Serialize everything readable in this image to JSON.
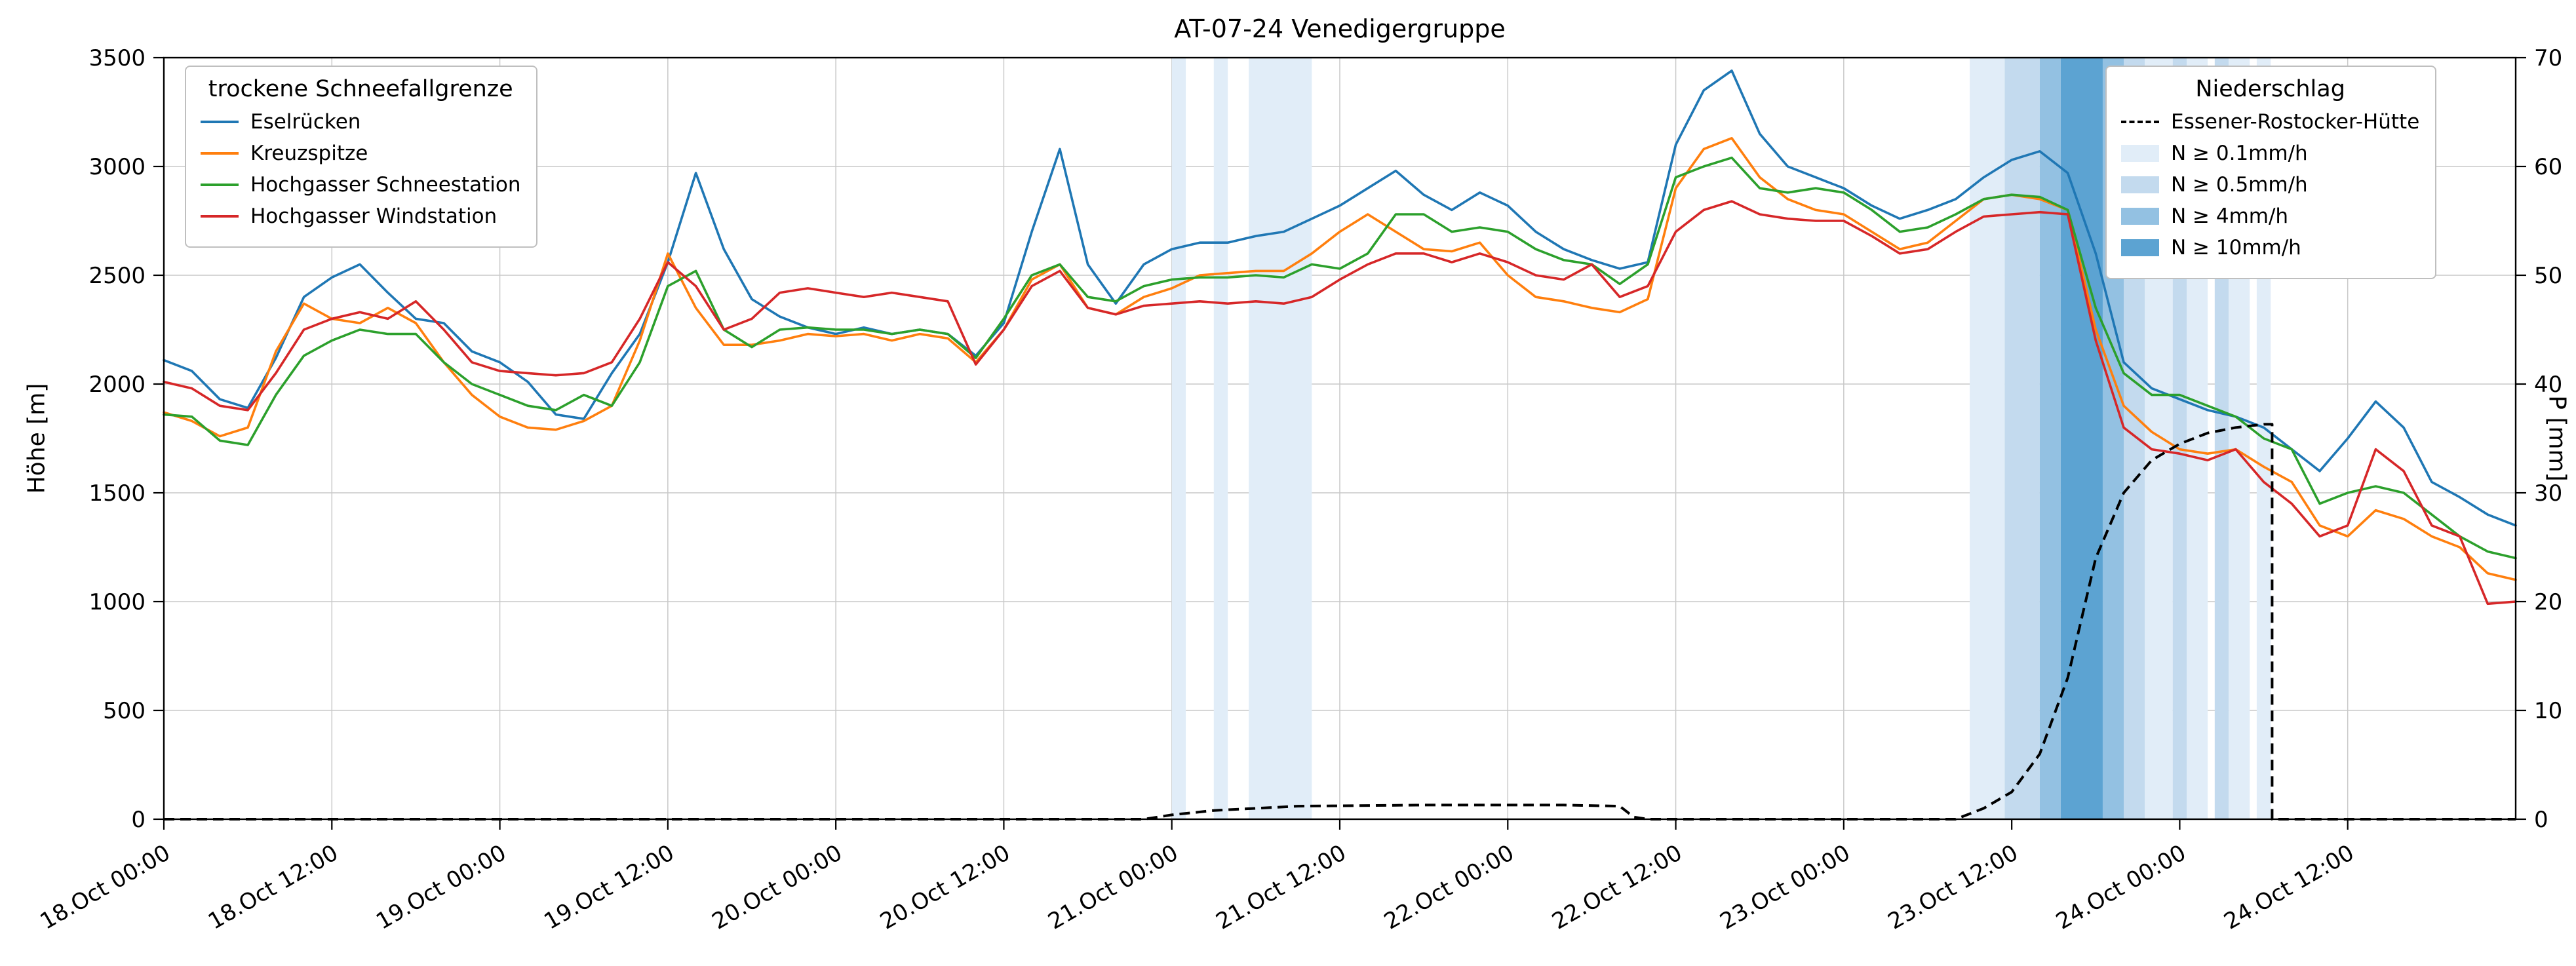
{
  "chart_data": {
    "type": "line",
    "title": "AT-07-24 Venedigergruppe",
    "ylabel_left": "Höhe [m]",
    "ylabel_right": "P [mm]",
    "ylim_left": [
      0,
      3500
    ],
    "ylim_right": [
      0,
      70
    ],
    "grid": true,
    "legend_left_title": "trockene Schneefallgrenze",
    "legend_right_title": "Niederschlag",
    "x_range": [
      0,
      168
    ],
    "x_step_hours": 2,
    "x_unit": "hours since 18.Oct 00:00",
    "x_ticks": [
      {
        "h": 0,
        "label": "18.Oct 00:00"
      },
      {
        "h": 12,
        "label": "18.Oct 12:00"
      },
      {
        "h": 24,
        "label": "19.Oct 00:00"
      },
      {
        "h": 36,
        "label": "19.Oct 12:00"
      },
      {
        "h": 48,
        "label": "20.Oct 00:00"
      },
      {
        "h": 60,
        "label": "20.Oct 12:00"
      },
      {
        "h": 72,
        "label": "21.Oct 00:00"
      },
      {
        "h": 84,
        "label": "21.Oct 12:00"
      },
      {
        "h": 96,
        "label": "22.Oct 00:00"
      },
      {
        "h": 108,
        "label": "22.Oct 12:00"
      },
      {
        "h": 120,
        "label": "23.Oct 00:00"
      },
      {
        "h": 132,
        "label": "23.Oct 12:00"
      },
      {
        "h": 144,
        "label": "24.Oct 00:00"
      },
      {
        "h": 156,
        "label": "24.Oct 12:00"
      }
    ],
    "y_ticks_left": [
      0,
      500,
      1000,
      1500,
      2000,
      2500,
      3000,
      3500
    ],
    "y_ticks_right": [
      0,
      10,
      20,
      30,
      40,
      50,
      60,
      70
    ],
    "series": [
      {
        "id": "eselruecken",
        "name": "Eselrücken",
        "color": "#1f77b4",
        "values": [
          2110,
          2060,
          1930,
          1890,
          2120,
          2400,
          2490,
          2550,
          2420,
          2300,
          2280,
          2150,
          2100,
          2010,
          1860,
          1840,
          2050,
          2230,
          2560,
          2970,
          2620,
          2390,
          2310,
          2260,
          2230,
          2260,
          2230,
          2250,
          2230,
          2130,
          2280,
          2700,
          3080,
          2550,
          2370,
          2550,
          2620,
          2650,
          2650,
          2680,
          2700,
          2760,
          2820,
          2900,
          2980,
          2870,
          2800,
          2880,
          2820,
          2700,
          2620,
          2570,
          2530,
          2560,
          3100,
          3350,
          3440,
          3150,
          3000,
          2950,
          2900,
          2820,
          2760,
          2800,
          2850,
          2950,
          3030,
          3070,
          2970,
          2600,
          2100,
          1980,
          1930,
          1880,
          1850,
          1800,
          1700,
          1600,
          1750,
          1920,
          1800,
          1550,
          1480,
          1400,
          1350
        ]
      },
      {
        "id": "kreuzspitze",
        "name": "Kreuzspitze",
        "color": "#ff7f0e",
        "values": [
          1870,
          1830,
          1760,
          1800,
          2150,
          2370,
          2300,
          2280,
          2350,
          2280,
          2100,
          1950,
          1850,
          1800,
          1790,
          1830,
          1900,
          2200,
          2600,
          2350,
          2180,
          2180,
          2200,
          2230,
          2220,
          2230,
          2200,
          2230,
          2210,
          2100,
          2250,
          2480,
          2550,
          2350,
          2320,
          2400,
          2440,
          2500,
          2510,
          2520,
          2520,
          2600,
          2700,
          2780,
          2700,
          2620,
          2610,
          2650,
          2500,
          2400,
          2380,
          2350,
          2330,
          2390,
          2900,
          3080,
          3130,
          2950,
          2850,
          2800,
          2780,
          2700,
          2620,
          2650,
          2750,
          2850,
          2870,
          2850,
          2800,
          2250,
          1900,
          1780,
          1700,
          1680,
          1700,
          1620,
          1550,
          1350,
          1300,
          1420,
          1380,
          1300,
          1250,
          1130,
          1100
        ]
      },
      {
        "id": "hochgasser-schneestation",
        "name": "Hochgasser Schneestation",
        "color": "#2ca02c",
        "values": [
          1860,
          1850,
          1740,
          1720,
          1950,
          2130,
          2200,
          2250,
          2230,
          2230,
          2100,
          2000,
          1950,
          1900,
          1880,
          1950,
          1900,
          2100,
          2450,
          2520,
          2250,
          2170,
          2250,
          2260,
          2250,
          2250,
          2230,
          2250,
          2230,
          2120,
          2300,
          2500,
          2550,
          2400,
          2380,
          2450,
          2480,
          2490,
          2490,
          2500,
          2490,
          2550,
          2530,
          2600,
          2780,
          2780,
          2700,
          2720,
          2700,
          2620,
          2570,
          2550,
          2460,
          2550,
          2950,
          3000,
          3040,
          2900,
          2880,
          2900,
          2880,
          2800,
          2700,
          2720,
          2780,
          2850,
          2870,
          2860,
          2800,
          2350,
          2050,
          1950,
          1950,
          1900,
          1850,
          1750,
          1700,
          1450,
          1500,
          1530,
          1500,
          1400,
          1300,
          1230,
          1200
        ]
      },
      {
        "id": "hochgasser-windstation",
        "name": "Hochgasser Windstation",
        "color": "#d62728",
        "values": [
          2010,
          1980,
          1900,
          1880,
          2050,
          2250,
          2300,
          2330,
          2300,
          2380,
          2250,
          2100,
          2060,
          2050,
          2040,
          2050,
          2100,
          2300,
          2560,
          2450,
          2250,
          2300,
          2420,
          2440,
          2420,
          2400,
          2420,
          2400,
          2380,
          2090,
          2250,
          2450,
          2520,
          2350,
          2320,
          2360,
          2370,
          2380,
          2370,
          2380,
          2370,
          2400,
          2480,
          2550,
          2600,
          2600,
          2560,
          2600,
          2560,
          2500,
          2480,
          2550,
          2400,
          2450,
          2700,
          2800,
          2840,
          2780,
          2760,
          2750,
          2750,
          2680,
          2600,
          2620,
          2700,
          2770,
          2780,
          2790,
          2780,
          2200,
          1800,
          1700,
          1680,
          1650,
          1700,
          1550,
          1450,
          1300,
          1350,
          1700,
          1600,
          1350,
          1300,
          990,
          1000
        ]
      }
    ],
    "precipitation_line": {
      "id": "essener-rostocker-huette",
      "name": "Essener-Rostocker-Hütte",
      "color": "#000000",
      "style": "dashed",
      "axis": "right",
      "points": [
        [
          0,
          0
        ],
        [
          70,
          0
        ],
        [
          72,
          0.4
        ],
        [
          75,
          0.8
        ],
        [
          78,
          1.0
        ],
        [
          81,
          1.2
        ],
        [
          90,
          1.3
        ],
        [
          100,
          1.3
        ],
        [
          104,
          1.2
        ],
        [
          105,
          0.2
        ],
        [
          106,
          0
        ],
        [
          128,
          0
        ],
        [
          130,
          1
        ],
        [
          132,
          2.5
        ],
        [
          134,
          6
        ],
        [
          136,
          13
        ],
        [
          138,
          24
        ],
        [
          140,
          30
        ],
        [
          142,
          33
        ],
        [
          144,
          34.5
        ],
        [
          146,
          35.5
        ],
        [
          148,
          36
        ],
        [
          150,
          36.3
        ],
        [
          150.6,
          36.3
        ],
        [
          150.6,
          0
        ],
        [
          168,
          0
        ]
      ]
    },
    "precipitation_bands": {
      "levels": [
        {
          "key": "0.1",
          "label": "N ≥ 0.1mm/h",
          "color": "#e1edf8"
        },
        {
          "key": "0.5",
          "label": "N ≥ 0.5mm/h",
          "color": "#c3daee"
        },
        {
          "key": "4",
          "label": "N ≥ 4mm/h",
          "color": "#93c1e2"
        },
        {
          "key": "10",
          "label": "N ≥ 10mm/h",
          "color": "#5ca3d2"
        }
      ],
      "spans": [
        {
          "start": 72,
          "end": 73,
          "level": "0.1"
        },
        {
          "start": 75,
          "end": 76,
          "level": "0.1"
        },
        {
          "start": 77.5,
          "end": 82,
          "level": "0.1"
        },
        {
          "start": 129,
          "end": 131.5,
          "level": "0.1"
        },
        {
          "start": 131.5,
          "end": 134,
          "level": "0.5"
        },
        {
          "start": 134,
          "end": 135.5,
          "level": "4"
        },
        {
          "start": 135.5,
          "end": 138.5,
          "level": "10"
        },
        {
          "start": 138.5,
          "end": 140,
          "level": "4"
        },
        {
          "start": 140,
          "end": 141.5,
          "level": "0.5"
        },
        {
          "start": 141.5,
          "end": 143.5,
          "level": "0.1"
        },
        {
          "start": 143.5,
          "end": 144.5,
          "level": "0.5"
        },
        {
          "start": 144.5,
          "end": 146,
          "level": "0.1"
        },
        {
          "start": 146.5,
          "end": 147.5,
          "level": "0.5"
        },
        {
          "start": 147.5,
          "end": 149,
          "level": "0.1"
        },
        {
          "start": 149.5,
          "end": 150.5,
          "level": "0.1"
        }
      ]
    },
    "style": {
      "grid_color": "#c9c9c9",
      "axes_color": "#000000",
      "background": "#ffffff"
    }
  }
}
